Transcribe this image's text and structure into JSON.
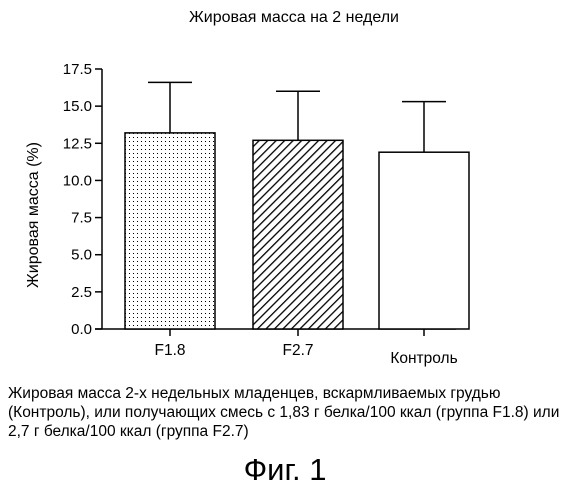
{
  "chart_data": {
    "type": "bar",
    "title": "Жировая масса на 2 недели",
    "xlabel": "",
    "ylabel": "Жировая масса (%)",
    "ylim": [
      0,
      17.5
    ],
    "yticks": [
      "0.0",
      "2.5",
      "5.0",
      "7.5",
      "10.0",
      "12.5",
      "15.0",
      "17.5"
    ],
    "categories": [
      "F1.8",
      "F2.7",
      "Контроль"
    ],
    "values": [
      13.2,
      12.7,
      11.9
    ],
    "error_plus": [
      3.4,
      3.3,
      3.4
    ],
    "fills": [
      "dotted",
      "diagonal-hatch",
      "white"
    ],
    "grid": false
  },
  "caption": "Жировая масса 2-х недельных младенцев, вскармливаемых грудью (Контроль), или получающих смесь с 1,83 г белка/100 ккал (группа F1.8) или 2,7 г белка/100 ккал (группа F2.7)",
  "figure_label": "Фиг. 1"
}
